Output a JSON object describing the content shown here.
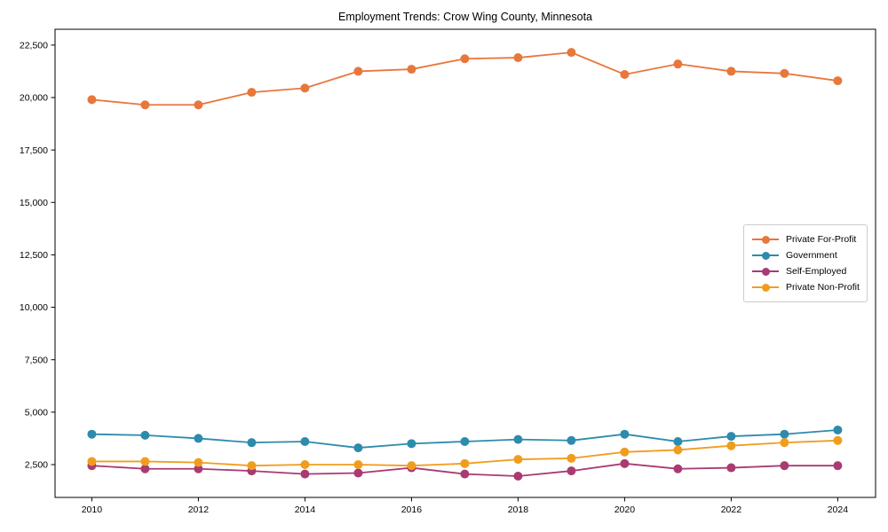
{
  "title": "Employment Trends: Crow Wing County, Minnesota",
  "chart_data": {
    "type": "line",
    "x": [
      2010,
      2011,
      2012,
      2013,
      2014,
      2015,
      2016,
      2017,
      2018,
      2019,
      2020,
      2021,
      2022,
      2023,
      2024
    ],
    "x_ticks": [
      2010,
      2012,
      2014,
      2016,
      2018,
      2020,
      2022,
      2024
    ],
    "x_tick_labels": [
      "2010",
      "2012",
      "2014",
      "2016",
      "2018",
      "2020",
      "2022",
      "2024"
    ],
    "y_ticks": [
      2500,
      5000,
      7500,
      10000,
      12500,
      15000,
      17500,
      20000,
      22500
    ],
    "y_tick_labels": [
      "2,500",
      "5,000",
      "7,500",
      "10,000",
      "12,500",
      "15,000",
      "17,500",
      "20,000",
      "22,500"
    ],
    "xlim": [
      2009.31,
      2024.71
    ],
    "ylim": [
      936,
      23255
    ],
    "grid": false,
    "legend_position": "center right",
    "series": [
      {
        "name": "Private For-Profit",
        "color": "#e8773c",
        "values": [
          19900,
          19650,
          19650,
          20250,
          20450,
          21250,
          21350,
          21850,
          21900,
          22150,
          21100,
          21600,
          21250,
          21150,
          20800
        ]
      },
      {
        "name": "Government",
        "color": "#2d8bad",
        "values": [
          3950,
          3900,
          3750,
          3550,
          3600,
          3300,
          3500,
          3600,
          3700,
          3650,
          3950,
          3600,
          3850,
          3950,
          4150
        ]
      },
      {
        "name": "Self-Employed",
        "color": "#a93a72",
        "values": [
          2450,
          2300,
          2300,
          2200,
          2050,
          2100,
          2350,
          2050,
          1950,
          2200,
          2550,
          2300,
          2350,
          2450,
          2450
        ]
      },
      {
        "name": "Private Non-Profit",
        "color": "#f09d1f",
        "values": [
          2650,
          2650,
          2600,
          2450,
          2500,
          2500,
          2450,
          2550,
          2750,
          2800,
          3100,
          3200,
          3400,
          3550,
          3650
        ]
      }
    ]
  }
}
